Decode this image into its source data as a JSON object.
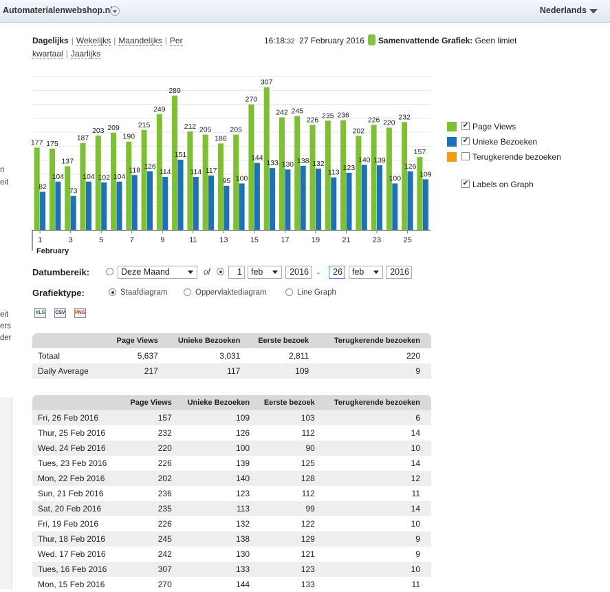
{
  "topbar": {
    "site_name": "Automaterialenwebshop.nl",
    "language": "Nederlands"
  },
  "left_edge": {
    "t1": "n",
    "t2": "eit",
    "t3": "eit",
    "t4": "ers",
    "t5": "der"
  },
  "periods": {
    "daily": "Dagelijks",
    "weekly": "Wekelijks",
    "monthly": "Maandelijks",
    "quarterly_a": "Per",
    "quarterly_b": "kwartaal",
    "yearly": "Jaarlijks",
    "sep": "|"
  },
  "header_info": {
    "time": "16:18:",
    "seconds": "32",
    "date": "27 February 2016",
    "summary_label": "Samenvattende Grafiek:",
    "summary_value": "Geen limiet"
  },
  "legend": {
    "page_views": "Page Views",
    "unique": "Unieke Bezoeken",
    "returning": "Terugkerende bezoeken",
    "labels_on_graph": "Labels on Graph"
  },
  "colors": {
    "page_views": "#7dc130",
    "unique": "#1b72b9",
    "returning": "#f39c12"
  },
  "chart_data": {
    "type": "bar",
    "x": [
      1,
      2,
      3,
      4,
      5,
      6,
      7,
      8,
      9,
      10,
      11,
      12,
      13,
      14,
      15,
      16,
      17,
      18,
      19,
      20,
      21,
      22,
      23,
      24,
      25,
      26
    ],
    "x_tick_labels": [
      "1",
      "3",
      "5",
      "7",
      "9",
      "11",
      "13",
      "15",
      "17",
      "19",
      "21",
      "23",
      "25"
    ],
    "x_tick_values": [
      1,
      3,
      5,
      7,
      9,
      11,
      13,
      15,
      17,
      19,
      21,
      23,
      25
    ],
    "month_label": "February",
    "ylim": [
      0,
      330
    ],
    "grid": true,
    "legend_position": "right",
    "series": [
      {
        "name": "Page Views",
        "values": [
          177,
          175,
          137,
          187,
          203,
          209,
          190,
          215,
          249,
          289,
          212,
          205,
          186,
          205,
          270,
          307,
          242,
          245,
          226,
          235,
          236,
          202,
          226,
          220,
          232,
          157
        ]
      },
      {
        "name": "Unieke Bezoeken",
        "values": [
          82,
          104,
          73,
          104,
          102,
          104,
          118,
          126,
          114,
          151,
          114,
          117,
          95,
          100,
          144,
          133,
          130,
          138,
          132,
          113,
          123,
          140,
          139,
          100,
          126,
          109
        ]
      }
    ]
  },
  "form": {
    "range_label": "Datumbereik:",
    "preset": "Deze Maand",
    "of": "of",
    "from_day": "1",
    "from_month": "feb",
    "from_year": "2016",
    "dash": "-",
    "to_day": "26",
    "to_month": "feb",
    "to_year": "2016",
    "type_label": "Grafiektype:",
    "type_bar": "Staafdiagram",
    "type_area": "Oppervlaktediagram",
    "type_line": "Line Graph"
  },
  "exports": {
    "xls": "XLS",
    "csv": "CSV",
    "png": "PNG"
  },
  "summary_table": {
    "headers": [
      "",
      "Page Views",
      "Unieke Bezoeken",
      "Eerste bezoek",
      "Terugkerende bezoeken"
    ],
    "rows": [
      [
        "Totaal",
        "5,637",
        "3,031",
        "2,811",
        "220"
      ],
      [
        "Daily Average",
        "217",
        "117",
        "109",
        "9"
      ]
    ]
  },
  "daily_table": {
    "headers": [
      "",
      "Page Views",
      "Unieke Bezoeken",
      "Eerste bezoek",
      "Terugkerende bezoeken"
    ],
    "rows": [
      [
        "Fri, 26 Feb 2016",
        "157",
        "109",
        "103",
        "6"
      ],
      [
        "Thur, 25 Feb 2016",
        "232",
        "126",
        "112",
        "14"
      ],
      [
        "Wed, 24 Feb 2016",
        "220",
        "100",
        "90",
        "10"
      ],
      [
        "Tues, 23 Feb 2016",
        "226",
        "139",
        "125",
        "14"
      ],
      [
        "Mon, 22 Feb 2016",
        "202",
        "140",
        "128",
        "12"
      ],
      [
        "Sun, 21 Feb 2016",
        "236",
        "123",
        "112",
        "11"
      ],
      [
        "Sat, 20 Feb 2016",
        "235",
        "113",
        "99",
        "14"
      ],
      [
        "Fri, 19 Feb 2016",
        "226",
        "132",
        "122",
        "10"
      ],
      [
        "Thur, 18 Feb 2016",
        "245",
        "138",
        "129",
        "9"
      ],
      [
        "Wed, 17 Feb 2016",
        "242",
        "130",
        "121",
        "9"
      ],
      [
        "Tues, 16 Feb 2016",
        "307",
        "133",
        "123",
        "10"
      ],
      [
        "Mon, 15 Feb 2016",
        "270",
        "144",
        "133",
        "11"
      ]
    ]
  }
}
